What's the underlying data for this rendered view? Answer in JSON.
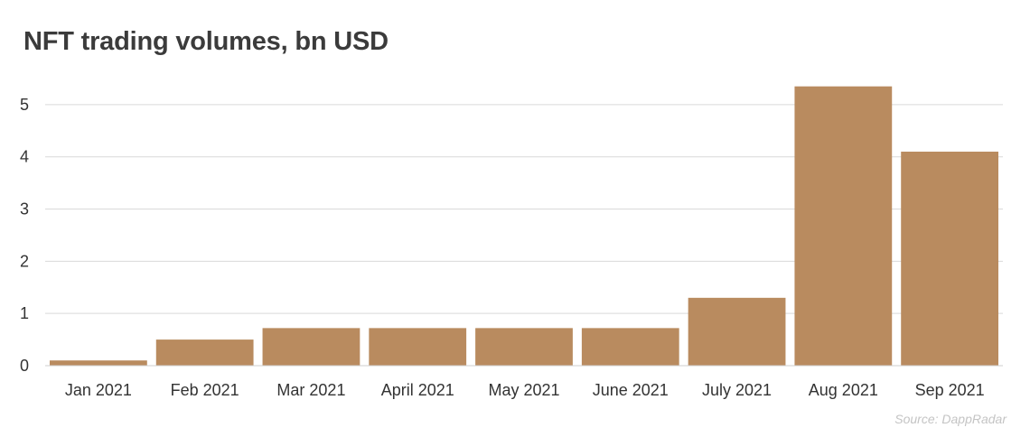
{
  "chart_data": {
    "type": "bar",
    "title": "NFT trading volumes, bn USD",
    "source": "Source: DappRadar",
    "categories": [
      "Jan 2021",
      "Feb 2021",
      "Mar 2021",
      "April 2021",
      "May 2021",
      "June 2021",
      "July 2021",
      "Aug 2021",
      "Sep 2021"
    ],
    "values": [
      0.1,
      0.5,
      0.72,
      0.72,
      0.72,
      0.72,
      1.3,
      5.35,
      4.1
    ],
    "ylim": [
      0,
      5.5
    ],
    "yticks": [
      "0",
      "1",
      "2",
      "3",
      "4",
      "5"
    ],
    "grid": true,
    "bar_color": "#b98b5f"
  }
}
